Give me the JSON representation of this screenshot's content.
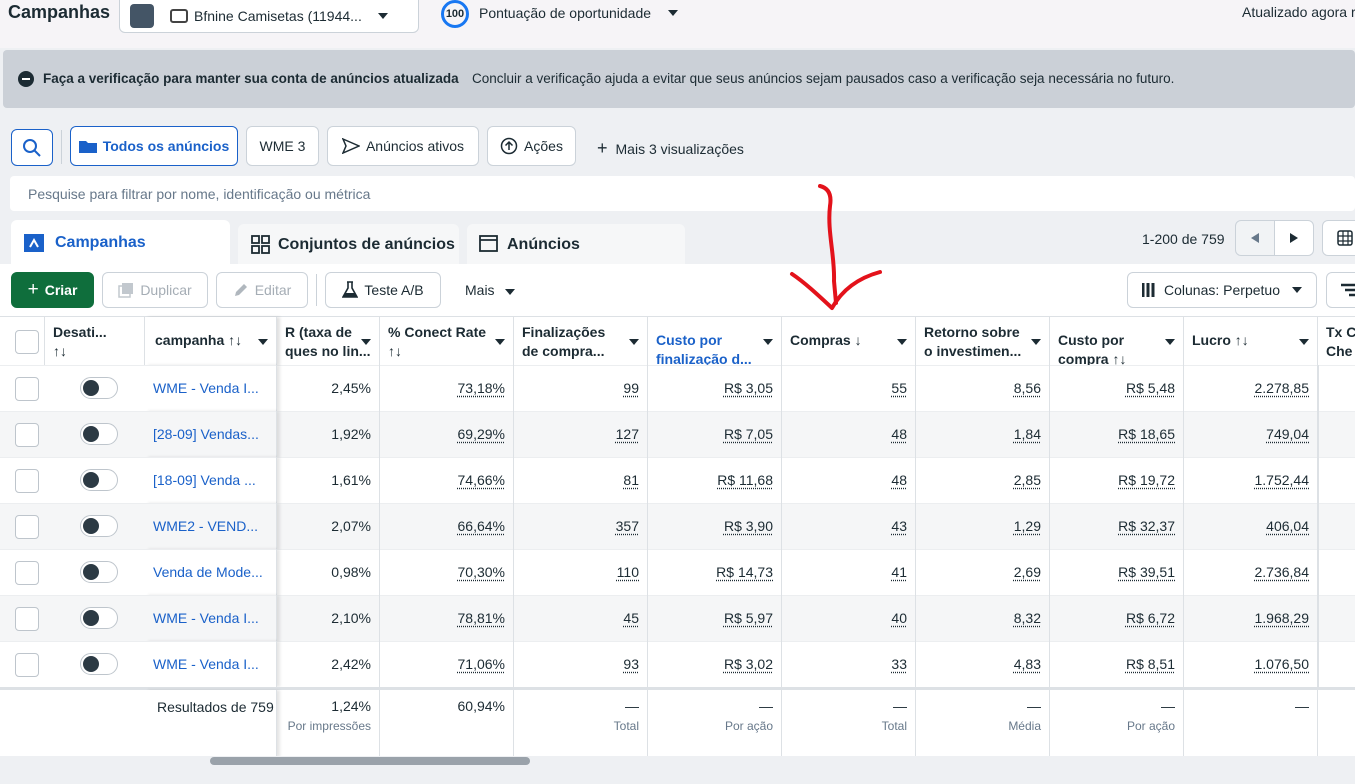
{
  "header": {
    "title": "Campanhas",
    "account": "Bfnine Camisetas (11944...",
    "score": "100",
    "score_label": "Pontuação de oportunidade",
    "updated": "Atualizado agora r"
  },
  "banner": {
    "title": "Faça a verificação para manter sua conta de anúncios atualizada",
    "text": "Concluir a verificação ajuda a evitar que seus anúncios sejam pausados caso a verificação seja necessária no futuro."
  },
  "toolbar": {
    "views": [
      "Todos os anúncios",
      "WME 3",
      "Anúncios ativos",
      "Ações"
    ],
    "more": "Mais 3 visualizações",
    "search": "Pesquise para filtrar por nome, identificação ou métrica"
  },
  "tabs": {
    "items": [
      "Campanhas",
      "Conjuntos de anúncios",
      "Anúncios"
    ],
    "pagination": "1-200 de 759"
  },
  "actions": {
    "create": "Criar",
    "duplicate": "Duplicar",
    "edit": "Editar",
    "ab": "Teste A/B",
    "more": "Mais",
    "columns": "Colunas: Perpetuo"
  },
  "table": {
    "columns": [
      [
        "Desati...",
        "↑↓"
      ],
      [
        "campanha ↑↓"
      ],
      [
        "R (taxa de",
        "ques no lin..."
      ],
      [
        "% Conect Rate",
        "↑↓"
      ],
      [
        "Finalizações",
        "de compra..."
      ],
      [
        "Custo por",
        "finalização d..."
      ],
      [
        "Compras ↓"
      ],
      [
        "Retorno sobre",
        "o investimen..."
      ],
      [
        "Custo por",
        "compra ↑↓"
      ],
      [
        "Lucro ↑↓"
      ],
      [
        "Tx C",
        "Che"
      ]
    ],
    "rows": [
      [
        "WME - Venda I...",
        "2,45%",
        "73,18%",
        "99",
        "R$ 3,05",
        "55",
        "8,56",
        "R$ 5,48",
        "2.278,85"
      ],
      [
        "[28-09] Vendas...",
        "1,92%",
        "69,29%",
        "127",
        "R$ 7,05",
        "48",
        "1,84",
        "R$ 18,65",
        "749,04"
      ],
      [
        "[18-09] Venda ...",
        "1,61%",
        "74,66%",
        "81",
        "R$ 11,68",
        "48",
        "2,85",
        "R$ 19,72",
        "1.752,44"
      ],
      [
        "WME2 - VEND...",
        "2,07%",
        "66,64%",
        "357",
        "R$ 3,90",
        "43",
        "1,29",
        "R$ 32,37",
        "406,04"
      ],
      [
        "Venda de Mode...",
        "0,98%",
        "70,30%",
        "110",
        "R$ 14,73",
        "41",
        "2,69",
        "R$ 39,51",
        "2.736,84"
      ],
      [
        "WME - Venda I...",
        "2,10%",
        "78,81%",
        "45",
        "R$ 5,97",
        "40",
        "8,32",
        "R$ 6,72",
        "1.968,29"
      ],
      [
        "WME - Venda I...",
        "2,42%",
        "71,06%",
        "93",
        "R$ 3,02",
        "33",
        "4,83",
        "R$ 8,51",
        "1.076,50"
      ]
    ],
    "footer": {
      "label": "Resultados de 759",
      "cells": [
        {
          "value": "1,24%",
          "note": "Por impressões"
        },
        {
          "value": "60,94%"
        },
        {
          "value": "—",
          "note": "Total"
        },
        {
          "value": "—",
          "note": "Por ação"
        },
        {
          "value": "—",
          "note": "Total"
        },
        {
          "value": "—",
          "note": "Média"
        },
        {
          "value": "—",
          "note": "Por ação"
        },
        {
          "value": "—"
        }
      ]
    }
  }
}
